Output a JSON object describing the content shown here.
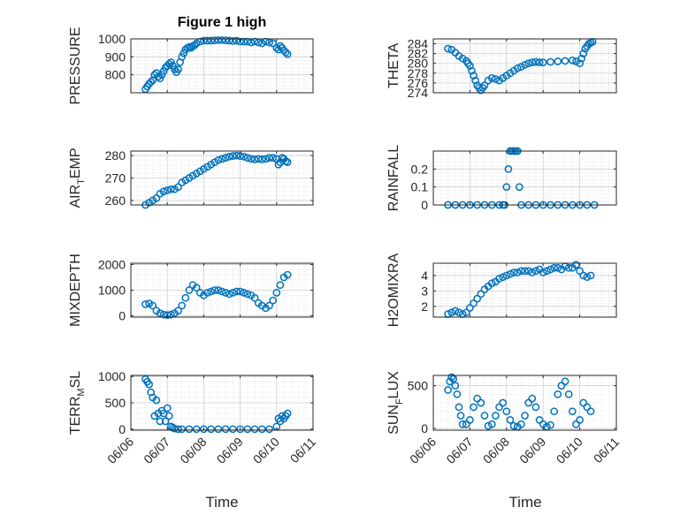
{
  "figure": {
    "title": "Figure 1 high",
    "xlabel": "Time"
  },
  "style": {
    "marker_color": "#0072BD",
    "axis_color": "#262626",
    "grid_color": "#d9d9d9"
  },
  "chart_data": [
    {
      "type": "scatter",
      "ylabel": "PRESSURE",
      "ylim": [
        700,
        1000
      ],
      "yticks": [
        800,
        900,
        1000
      ],
      "x_range": [
        "06/06",
        "06/11"
      ],
      "x": [
        0.4,
        0.45,
        0.5,
        0.55,
        0.6,
        0.65,
        0.7,
        0.75,
        0.8,
        0.85,
        0.9,
        0.95,
        1.0,
        1.05,
        1.1,
        1.15,
        1.2,
        1.25,
        1.3,
        1.35,
        1.4,
        1.45,
        1.5,
        1.55,
        1.6,
        1.65,
        1.7,
        1.75,
        1.8,
        1.9,
        2.0,
        2.1,
        2.2,
        2.3,
        2.4,
        2.5,
        2.6,
        2.7,
        2.8,
        2.9,
        3.0,
        3.1,
        3.2,
        3.3,
        3.4,
        3.5,
        3.6,
        3.7,
        3.8,
        3.9,
        4.0,
        4.05,
        4.1,
        4.15,
        4.2,
        4.25,
        4.3
      ],
      "values": [
        720,
        735,
        750,
        760,
        770,
        800,
        810,
        790,
        780,
        800,
        820,
        840,
        850,
        860,
        870,
        850,
        830,
        815,
        830,
        870,
        900,
        920,
        940,
        950,
        955,
        950,
        960,
        965,
        975,
        985,
        990,
        990,
        990,
        992,
        993,
        993,
        992,
        990,
        988,
        990,
        985,
        985,
        985,
        980,
        985,
        980,
        975,
        985,
        980,
        975,
        950,
        940,
        960,
        950,
        935,
        925,
        915
      ]
    },
    {
      "type": "scatter",
      "ylabel": "THETA",
      "ylim": [
        274,
        285
      ],
      "yticks": [
        274,
        276,
        278,
        280,
        282,
        284
      ],
      "x_range": [
        "06/06",
        "06/11"
      ],
      "x": [
        0.4,
        0.5,
        0.6,
        0.7,
        0.8,
        0.9,
        0.95,
        1.0,
        1.05,
        1.1,
        1.15,
        1.2,
        1.25,
        1.3,
        1.35,
        1.4,
        1.5,
        1.6,
        1.7,
        1.8,
        1.9,
        2.0,
        2.1,
        2.2,
        2.3,
        2.4,
        2.5,
        2.6,
        2.7,
        2.8,
        2.9,
        3.0,
        3.2,
        3.4,
        3.6,
        3.8,
        3.9,
        4.0,
        4.05,
        4.1,
        4.15,
        4.2,
        4.25,
        4.3,
        4.35
      ],
      "values": [
        283,
        282.8,
        282.2,
        281.5,
        281,
        280.5,
        280,
        279.5,
        278.5,
        277.5,
        276.5,
        275.5,
        275,
        274.5,
        275,
        275.5,
        276.5,
        277,
        276.8,
        276.5,
        277,
        277.5,
        278,
        278.5,
        279,
        279.3,
        279.7,
        280,
        280.2,
        280.3,
        280.2,
        280.2,
        280.3,
        280.4,
        280.5,
        280.6,
        280.4,
        280,
        281,
        282,
        283,
        283.5,
        284,
        284.2,
        284.4
      ]
    },
    {
      "type": "scatter",
      "ylabel": "AIR_TEMP",
      "ylim": [
        258,
        282
      ],
      "yticks": [
        260,
        270,
        280
      ],
      "x_range": [
        "06/06",
        "06/11"
      ],
      "x": [
        0.4,
        0.5,
        0.6,
        0.7,
        0.8,
        0.9,
        1.0,
        1.1,
        1.2,
        1.3,
        1.4,
        1.5,
        1.6,
        1.7,
        1.8,
        1.9,
        2.0,
        2.1,
        2.2,
        2.3,
        2.4,
        2.5,
        2.6,
        2.7,
        2.8,
        2.9,
        3.0,
        3.1,
        3.2,
        3.3,
        3.4,
        3.5,
        3.6,
        3.7,
        3.8,
        3.9,
        4.0,
        4.05,
        4.1,
        4.15,
        4.2,
        4.25,
        4.3
      ],
      "values": [
        258,
        259,
        260,
        261,
        263,
        264,
        264.5,
        265,
        265,
        266,
        268,
        269,
        270,
        271,
        272,
        273,
        274,
        275,
        276,
        277,
        278,
        278.5,
        279,
        279.5,
        279.8,
        280,
        279.8,
        279.5,
        279,
        278.5,
        278.3,
        278.5,
        278.3,
        278.5,
        279,
        279,
        278.5,
        276,
        277,
        279,
        278.5,
        277.5,
        277
      ]
    },
    {
      "type": "scatter",
      "ylabel": "RAINFALL",
      "ylim": [
        0,
        0.3
      ],
      "yticks": [
        0,
        0.1,
        0.2
      ],
      "x_range": [
        "06/06",
        "06/11"
      ],
      "x": [
        0.4,
        0.6,
        0.8,
        1.0,
        1.2,
        1.4,
        1.6,
        1.8,
        1.9,
        1.95,
        2.0,
        2.05,
        2.1,
        2.15,
        2.2,
        2.25,
        2.3,
        2.35,
        2.4,
        2.6,
        2.8,
        3.0,
        3.2,
        3.4,
        3.6,
        3.8,
        4.0,
        4.2,
        4.4
      ],
      "values": [
        0,
        0,
        0,
        0,
        0,
        0,
        0,
        0,
        0,
        0,
        0.1,
        0.2,
        0.3,
        0.3,
        0.3,
        0.3,
        0.3,
        0.1,
        0,
        0,
        0,
        0,
        0,
        0,
        0,
        0,
        0,
        0,
        0
      ]
    },
    {
      "type": "scatter",
      "ylabel": "MIXDEPTH",
      "ylim": [
        -50,
        2050
      ],
      "yticks": [
        0,
        1000,
        2000
      ],
      "x_range": [
        "06/06",
        "06/11"
      ],
      "x": [
        0.4,
        0.5,
        0.6,
        0.7,
        0.8,
        0.9,
        1.0,
        1.1,
        1.2,
        1.3,
        1.4,
        1.5,
        1.6,
        1.7,
        1.8,
        1.9,
        2.0,
        2.1,
        2.2,
        2.3,
        2.4,
        2.5,
        2.6,
        2.7,
        2.8,
        2.9,
        3.0,
        3.1,
        3.2,
        3.3,
        3.4,
        3.5,
        3.6,
        3.7,
        3.8,
        3.9,
        4.0,
        4.1,
        4.2,
        4.3
      ],
      "values": [
        450,
        480,
        400,
        200,
        100,
        50,
        30,
        50,
        100,
        200,
        400,
        700,
        1000,
        1200,
        1100,
        900,
        800,
        900,
        950,
        1000,
        1000,
        950,
        900,
        850,
        900,
        950,
        950,
        900,
        850,
        800,
        700,
        500,
        400,
        300,
        400,
        600,
        900,
        1200,
        1500,
        1600
      ]
    },
    {
      "type": "scatter",
      "ylabel": "H2OMIXRA",
      "ylim": [
        1.3,
        4.8
      ],
      "yticks": [
        2,
        3,
        4
      ],
      "x_range": [
        "06/06",
        "06/11"
      ],
      "x": [
        0.4,
        0.5,
        0.6,
        0.7,
        0.8,
        0.9,
        1.0,
        1.1,
        1.2,
        1.3,
        1.4,
        1.5,
        1.6,
        1.7,
        1.8,
        1.9,
        2.0,
        2.1,
        2.2,
        2.3,
        2.4,
        2.5,
        2.6,
        2.7,
        2.8,
        2.9,
        3.0,
        3.1,
        3.2,
        3.3,
        3.4,
        3.5,
        3.6,
        3.7,
        3.8,
        3.9,
        4.0,
        4.1,
        4.2,
        4.3
      ],
      "values": [
        1.5,
        1.6,
        1.7,
        1.6,
        1.5,
        1.6,
        1.9,
        2.2,
        2.5,
        2.8,
        3.1,
        3.3,
        3.5,
        3.6,
        3.8,
        3.9,
        4.0,
        4.1,
        4.2,
        4.2,
        4.3,
        4.3,
        4.3,
        4.2,
        4.3,
        4.4,
        4.2,
        4.3,
        4.4,
        4.5,
        4.5,
        4.4,
        4.6,
        4.5,
        4.5,
        4.7,
        4.3,
        4.0,
        3.9,
        4.0
      ]
    },
    {
      "type": "scatter",
      "ylabel": "TERR_MSL",
      "ylim": [
        -20,
        1020
      ],
      "yticks": [
        0,
        500,
        1000
      ],
      "x_range": [
        "06/06",
        "06/11"
      ],
      "x": [
        0.4,
        0.45,
        0.5,
        0.55,
        0.6,
        0.65,
        0.7,
        0.75,
        0.8,
        0.85,
        0.9,
        0.95,
        1.0,
        1.05,
        1.1,
        1.15,
        1.2,
        1.3,
        1.4,
        1.6,
        1.8,
        2.0,
        2.2,
        2.4,
        2.6,
        2.8,
        3.0,
        3.2,
        3.4,
        3.6,
        3.8,
        4.0,
        4.05,
        4.1,
        4.15,
        4.2,
        4.25,
        4.3
      ],
      "values": [
        950,
        900,
        850,
        700,
        600,
        250,
        550,
        300,
        150,
        350,
        300,
        150,
        400,
        250,
        50,
        30,
        10,
        0,
        0,
        0,
        0,
        0,
        0,
        0,
        0,
        0,
        0,
        0,
        0,
        0,
        0,
        50,
        200,
        150,
        250,
        200,
        250,
        300
      ]
    },
    {
      "type": "scatter",
      "ylabel": "SUN_FLUX",
      "ylim": [
        -20,
        620
      ],
      "yticks": [
        0,
        500
      ],
      "x_range": [
        "06/06",
        "06/11"
      ],
      "x": [
        0.4,
        0.45,
        0.5,
        0.55,
        0.6,
        0.65,
        0.7,
        0.75,
        0.8,
        0.9,
        1.0,
        1.1,
        1.2,
        1.3,
        1.4,
        1.5,
        1.6,
        1.7,
        1.8,
        1.9,
        2.0,
        2.1,
        2.2,
        2.3,
        2.4,
        2.5,
        2.6,
        2.7,
        2.8,
        2.9,
        3.0,
        3.1,
        3.2,
        3.3,
        3.4,
        3.5,
        3.6,
        3.7,
        3.8,
        3.9,
        4.0,
        4.1,
        4.2,
        4.3
      ],
      "values": [
        450,
        550,
        600,
        580,
        500,
        400,
        250,
        150,
        50,
        50,
        100,
        250,
        350,
        300,
        150,
        30,
        50,
        150,
        250,
        300,
        200,
        100,
        30,
        20,
        50,
        150,
        300,
        350,
        250,
        100,
        50,
        20,
        40,
        200,
        400,
        500,
        550,
        400,
        200,
        50,
        100,
        300,
        250,
        200
      ]
    }
  ]
}
